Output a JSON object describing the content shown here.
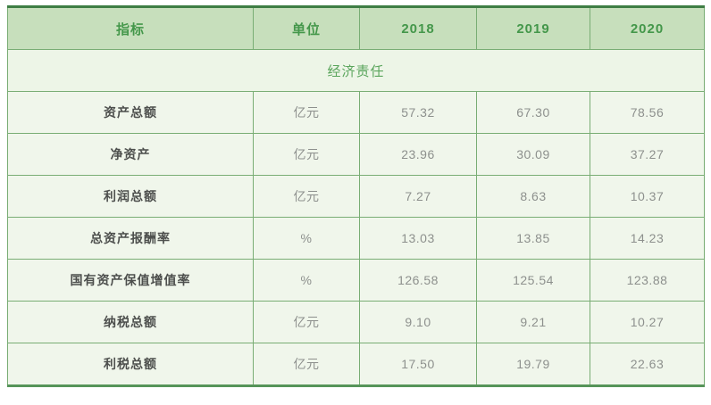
{
  "table": {
    "title_semantic": "economic-responsibility-indicators-table",
    "columns": [
      "指标",
      "单位",
      "2018",
      "2019",
      "2020"
    ],
    "section_header": "经济责任",
    "rows": [
      [
        "资产总额",
        "亿元",
        "57.32",
        "67.30",
        "78.56"
      ],
      [
        "净资产",
        "亿元",
        "23.96",
        "30.09",
        "37.27"
      ],
      [
        "利润总额",
        "亿元",
        "7.27",
        "8.63",
        "10.37"
      ],
      [
        "总资产报酬率",
        "%",
        "13.03",
        "13.85",
        "14.23"
      ],
      [
        "国有资产保值增值率",
        "%",
        "126.58",
        "125.54",
        "123.88"
      ],
      [
        "纳税总额",
        "亿元",
        "9.10",
        "9.21",
        "10.27"
      ],
      [
        "利税总额",
        "亿元",
        "17.50",
        "19.79",
        "22.63"
      ]
    ]
  },
  "colors": {
    "header_bg": "#c7dfbc",
    "header_text": "#44974a",
    "section_bg": "#edf5e7",
    "section_text": "#5aa55c",
    "row_bg": "#f0f6eb",
    "grid_line": "#79ad74",
    "top_border": "#3e7d44",
    "bottom_border": "#569459",
    "indicator_text": "#4d4f4d",
    "value_text": "#8d908d"
  }
}
